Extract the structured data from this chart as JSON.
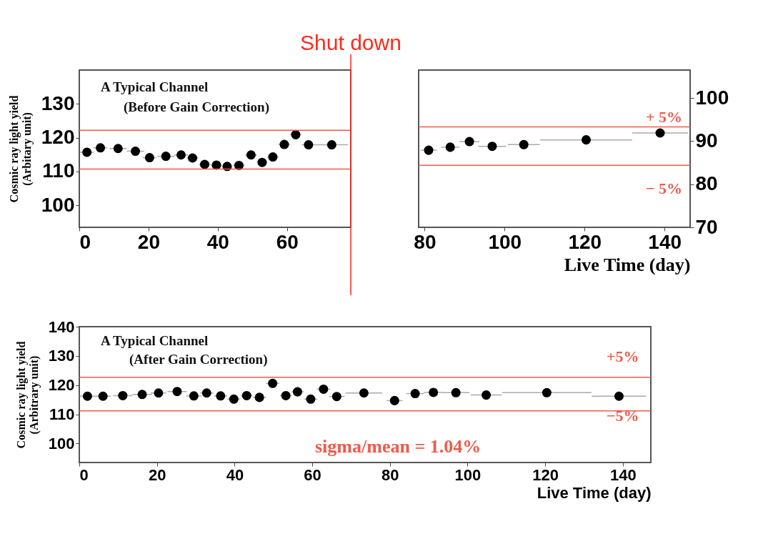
{
  "chart_data": [
    {
      "type": "scatter",
      "color": "#000000",
      "marker": "circle",
      "ylabel": "Cosmic ray light yield\n(Arbitary unit)",
      "x": [
        2.2,
        6.1,
        11.2,
        16.2,
        20.3,
        25.0,
        29.4,
        32.7,
        36.2,
        39.6,
        42.7,
        46.1,
        49.6,
        52.8,
        55.9,
        59.2,
        62.5,
        66.2,
        72.9
      ],
      "values": [
        115.7,
        117.0,
        116.8,
        116.0,
        114.1,
        114.5,
        114.9,
        114.0,
        112.1,
        111.9,
        111.5,
        111.8,
        114.9,
        112.7,
        114.3,
        118.0,
        120.9,
        117.9,
        117.9
      ],
      "xerrors": [
        2,
        2,
        2.5,
        2.5,
        2,
        2.5,
        2,
        1.7,
        1.7,
        1.7,
        1.5,
        1.7,
        1.7,
        1.5,
        1.6,
        1.7,
        1.7,
        2,
        4.7
      ],
      "xlim": [
        0,
        78.4
      ],
      "xticks": [
        0,
        20,
        40,
        60
      ],
      "ylim": [
        93.5,
        140
      ],
      "yticks": [
        100,
        110,
        120,
        130
      ],
      "annotations": [
        "A Typical Channel",
        "(Before Gain Correction)"
      ],
      "ref_lines": [
        {
          "axis": "y",
          "value": 122.2,
          "color": "#f05a4a"
        },
        {
          "axis": "y",
          "value": 110.7,
          "color": "#f05a4a"
        },
        {
          "axis": "x",
          "value": 78.4,
          "label": "Shut down",
          "color": "#ff2a1a"
        }
      ]
    },
    {
      "type": "scatter",
      "color": "#000000",
      "marker": "circle",
      "xlabel": "Live Time (day)",
      "x": [
        81.0,
        86.4,
        91.2,
        96.9,
        104.8,
        120.4,
        138.9
      ],
      "values": [
        87.9,
        88.6,
        89.9,
        88.8,
        89.2,
        90.3,
        91.9
      ],
      "xerrors": [
        2,
        2.3,
        2.5,
        3.5,
        4,
        11.5,
        7
      ],
      "xlim": [
        78.5,
        146.4
      ],
      "xticks": [
        80,
        100,
        120,
        140
      ],
      "ylim": [
        70,
        106.5
      ],
      "yticks": [
        70,
        80,
        90,
        100
      ],
      "annotations": [
        "+ 5%",
        "− 5%"
      ],
      "ref_lines": [
        {
          "axis": "y",
          "value": 93.3,
          "color": "#f05a4a"
        },
        {
          "axis": "y",
          "value": 84.4,
          "color": "#f05a4a"
        }
      ]
    },
    {
      "type": "scatter",
      "color": "#000000",
      "marker": "circle",
      "ylabel": "Cosmic ray light yield\n(Arbitrary unit)",
      "xlabel": "Live Time (day)",
      "x": [
        2.1,
        6.1,
        11.2,
        16.2,
        20.4,
        25.2,
        29.5,
        32.8,
        36.4,
        39.8,
        43.1,
        46.4,
        49.8,
        53.2,
        56.2,
        59.6,
        62.9,
        66.3,
        73.3,
        81.2,
        86.5,
        91.2,
        97.0,
        104.8,
        120.4,
        139.0
      ],
      "values": [
        116.2,
        116.2,
        116.4,
        116.8,
        117.3,
        117.8,
        116.3,
        117.3,
        116.3,
        115.2,
        116.4,
        115.8,
        120.6,
        116.4,
        117.7,
        115.2,
        118.6,
        116.1,
        117.3,
        114.7,
        117.1,
        117.5,
        117.4,
        116.6,
        117.4,
        116.2
      ],
      "xerrors": [
        2,
        2,
        2.5,
        2.5,
        2,
        2.5,
        2,
        1.7,
        1.7,
        1.7,
        1.5,
        1.7,
        1.7,
        1.5,
        1.6,
        1.7,
        1.7,
        2,
        4.7,
        2,
        2.3,
        2.5,
        3.5,
        4,
        11.5,
        7
      ],
      "xlim": [
        0,
        147.2
      ],
      "xticks": [
        0,
        20,
        40,
        60,
        80,
        100,
        120,
        140
      ],
      "ylim": [
        93.5,
        140
      ],
      "yticks": [
        100,
        110,
        120,
        130,
        140
      ],
      "annotations": [
        "A Typical Channel",
        "(After Gain Correction)",
        "sigma/mean = 1.04%",
        "+5%",
        "−5%"
      ],
      "ref_lines": [
        {
          "axis": "y",
          "value": 122.7,
          "color": "#f05a4a"
        },
        {
          "axis": "y",
          "value": 111.2,
          "color": "#f05a4a"
        }
      ]
    }
  ]
}
